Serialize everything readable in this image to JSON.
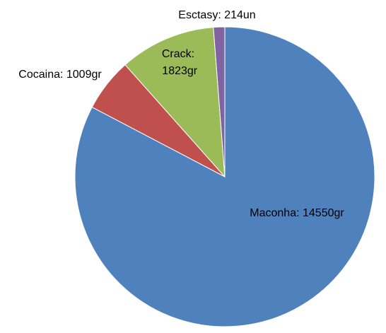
{
  "chart_data": {
    "type": "pie",
    "values": [
      14550,
      1009,
      1823,
      214
    ],
    "value_labels": [
      "Maconha: 14550gr",
      "Cocaina: 1009gr",
      "Crack: 1823gr",
      "Esctasy: 214un"
    ],
    "colors": [
      "#4f81bd",
      "#c0504d",
      "#9bbb59",
      "#8064a2"
    ]
  }
}
